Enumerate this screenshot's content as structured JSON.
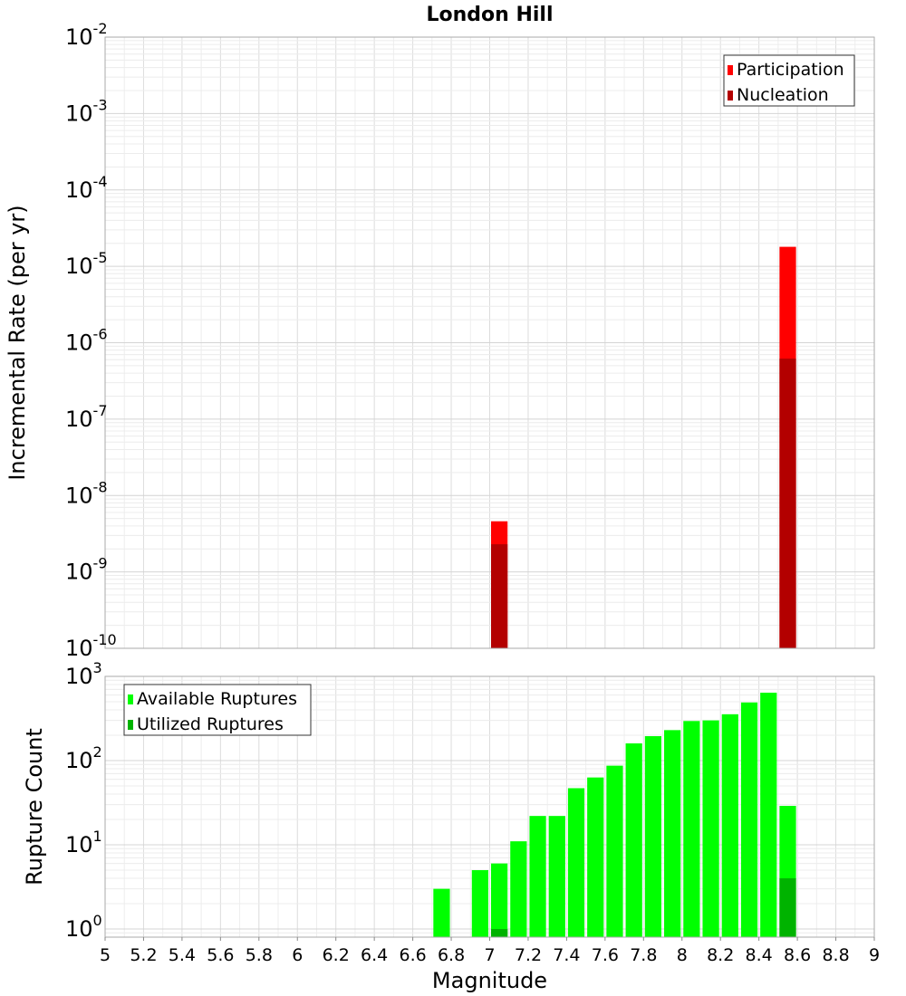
{
  "chart_data": [
    {
      "type": "bar",
      "title": "London Hill",
      "xlabel": "",
      "ylabel": "Incremental Rate (per yr)",
      "yscale": "log",
      "xlim": [
        5,
        9
      ],
      "ylim": [
        1e-10,
        0.01
      ],
      "ytick_labels": [
        {
          "base": "10",
          "exp": "-10"
        },
        {
          "base": "10",
          "exp": "-9"
        },
        {
          "base": "10",
          "exp": "-8"
        },
        {
          "base": "10",
          "exp": "-7"
        },
        {
          "base": "10",
          "exp": "-6"
        },
        {
          "base": "10",
          "exp": "-5"
        },
        {
          "base": "10",
          "exp": "-4"
        },
        {
          "base": "10",
          "exp": "-3"
        },
        {
          "base": "10",
          "exp": "-2"
        }
      ],
      "bar_width": 0.1,
      "grid": true,
      "legend_position": "top-right",
      "series": [
        {
          "name": "Participation",
          "color": "#ff0000",
          "points": [
            {
              "x": 7.05,
              "y": 4.6e-09
            },
            {
              "x": 8.55,
              "y": 1.8e-05
            }
          ]
        },
        {
          "name": "Nucleation",
          "color": "#b30000",
          "points": [
            {
              "x": 7.05,
              "y": 2.3e-09
            },
            {
              "x": 8.55,
              "y": 6.2e-07
            }
          ]
        }
      ]
    },
    {
      "type": "bar",
      "title": "",
      "xlabel": "Magnitude",
      "ylabel": "Rupture Count",
      "yscale": "log",
      "xlim": [
        5,
        9
      ],
      "ylim": [
        0.8,
        1000
      ],
      "ytick_labels": [
        {
          "value": 1,
          "base": "10",
          "exp": "0"
        },
        {
          "value": 10,
          "base": "10",
          "exp": "1"
        },
        {
          "value": 100,
          "base": "10",
          "exp": "2"
        },
        {
          "value": 1000,
          "base": "10",
          "exp": "3"
        }
      ],
      "xticks": [
        "5",
        "5.2",
        "5.4",
        "5.6",
        "5.8",
        "6",
        "6.2",
        "6.4",
        "6.6",
        "6.8",
        "7",
        "7.2",
        "7.4",
        "7.6",
        "7.8",
        "8",
        "8.2",
        "8.4",
        "8.6",
        "8.8",
        "9"
      ],
      "bar_width": 0.1,
      "grid": true,
      "legend_position": "top-left",
      "series": [
        {
          "name": "Available Ruptures",
          "color": "#00ff00",
          "points": [
            {
              "x": 6.75,
              "y": 3
            },
            {
              "x": 6.95,
              "y": 5
            },
            {
              "x": 7.05,
              "y": 6
            },
            {
              "x": 7.15,
              "y": 11
            },
            {
              "x": 7.25,
              "y": 22
            },
            {
              "x": 7.35,
              "y": 22
            },
            {
              "x": 7.45,
              "y": 47
            },
            {
              "x": 7.55,
              "y": 63
            },
            {
              "x": 7.65,
              "y": 87
            },
            {
              "x": 7.75,
              "y": 160
            },
            {
              "x": 7.85,
              "y": 195
            },
            {
              "x": 7.95,
              "y": 230
            },
            {
              "x": 8.05,
              "y": 295
            },
            {
              "x": 8.15,
              "y": 300
            },
            {
              "x": 8.25,
              "y": 355
            },
            {
              "x": 8.35,
              "y": 490
            },
            {
              "x": 8.45,
              "y": 640
            },
            {
              "x": 8.55,
              "y": 29
            }
          ]
        },
        {
          "name": "Utilized Ruptures",
          "color": "#00b300",
          "points": [
            {
              "x": 7.05,
              "y": 1
            },
            {
              "x": 8.55,
              "y": 4
            }
          ]
        }
      ]
    }
  ]
}
